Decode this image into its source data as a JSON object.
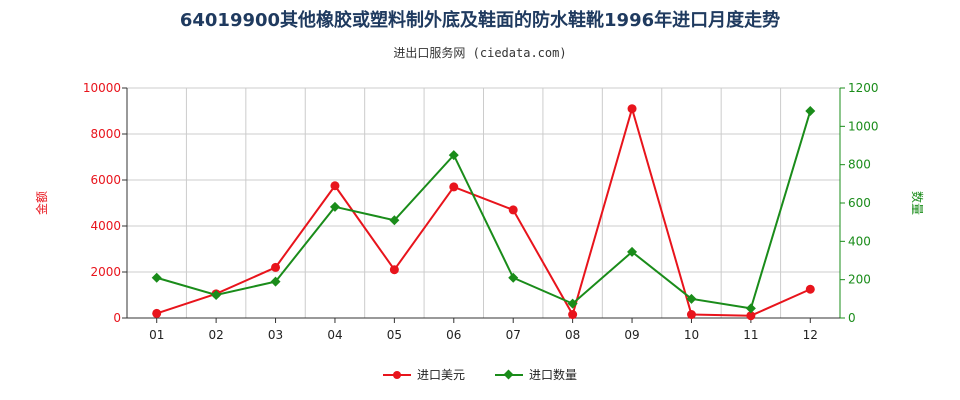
{
  "header": {
    "title": "64019900其他橡胶或塑料制外底及鞋面的防水鞋靴1996年进口月度走势",
    "subtitle": "进出口服务网 (ciedata.com)"
  },
  "legend": {
    "series1_label": "进口美元",
    "series2_label": "进口数量"
  },
  "colors": {
    "series1": "#e8141c",
    "series2": "#1a8c1a",
    "grid": "#cccccc",
    "axis": "#333333"
  },
  "chart_data": {
    "type": "line",
    "title": "64019900其他橡胶或塑料制外底及鞋面的防水鞋靴1996年进口月度走势",
    "subtitle": "进出口服务网 (ciedata.com)",
    "categories": [
      "01",
      "02",
      "03",
      "04",
      "05",
      "06",
      "07",
      "08",
      "09",
      "10",
      "11",
      "12"
    ],
    "y_left": {
      "label": "金额",
      "ylim": [
        0,
        10000
      ],
      "ticks": [
        "0",
        "2000",
        "4000",
        "6000",
        "8000",
        "10000"
      ]
    },
    "y_right": {
      "label": "数量",
      "ylim": [
        0,
        1200
      ],
      "ticks": [
        "0",
        "200",
        "400",
        "600",
        "800",
        "1000",
        "1200"
      ]
    },
    "series": [
      {
        "name": "进口美元",
        "axis": "left",
        "marker": "circle",
        "values": [
          200,
          1050,
          2200,
          5750,
          2100,
          5700,
          4700,
          150,
          9100,
          150,
          100,
          1250
        ]
      },
      {
        "name": "进口数量",
        "axis": "right",
        "marker": "diamond",
        "values": [
          210,
          120,
          190,
          580,
          510,
          850,
          210,
          75,
          345,
          100,
          50,
          1080
        ]
      }
    ],
    "grid": true,
    "legend_position": "bottom"
  }
}
